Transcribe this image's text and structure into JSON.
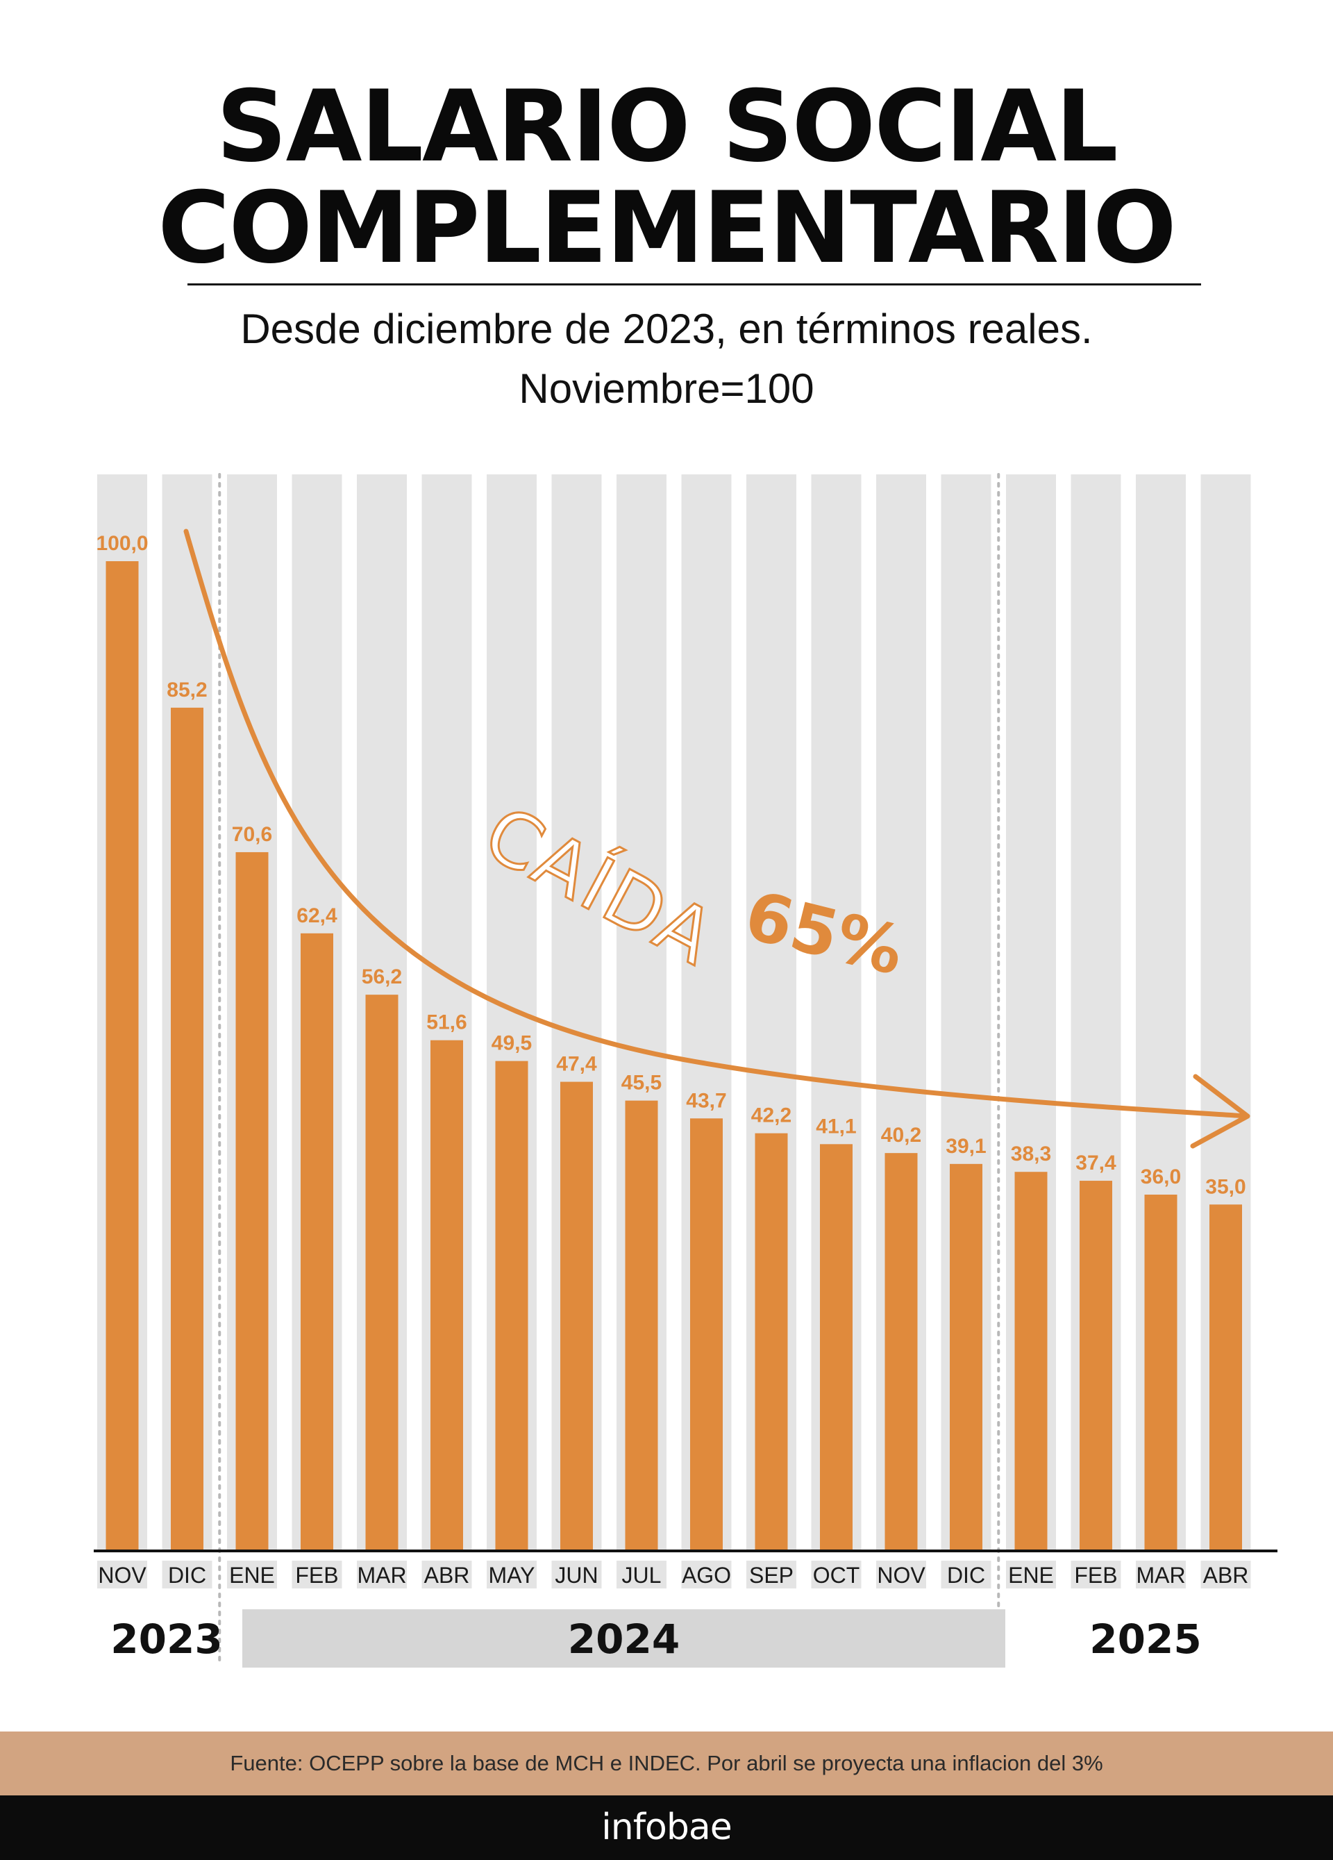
{
  "header": {
    "title_line1": "SALARIO SOCIAL",
    "title_line2": "COMPLEMENTARIO",
    "subtitle_line1": "Desde diciembre de 2023, en términos reales.",
    "subtitle_line2": "Noviembre=100"
  },
  "chart_data": {
    "type": "bar",
    "title": "SALARIO SOCIAL COMPLEMENTARIO",
    "subtitle": "Desde diciembre de 2023, en términos reales. Noviembre=100",
    "categories": [
      "NOV",
      "DIC",
      "ENE",
      "FEB",
      "MAR",
      "ABR",
      "MAY",
      "JUN",
      "JUL",
      "AGO",
      "SEP",
      "OCT",
      "NOV",
      "DIC",
      "ENE",
      "FEB",
      "MAR",
      "ABR"
    ],
    "values": [
      100.0,
      85.2,
      70.6,
      62.4,
      56.2,
      51.6,
      49.5,
      47.4,
      45.5,
      43.7,
      42.2,
      41.1,
      40.2,
      39.1,
      38.3,
      37.4,
      36.0,
      35.0
    ],
    "value_labels": [
      "100,0",
      "85,2",
      "70,6",
      "62,4",
      "56,2",
      "51,6",
      "49,5",
      "47,4",
      "45,5",
      "43,7",
      "42,2",
      "41,1",
      "40,2",
      "39,1",
      "38,3",
      "37,4",
      "36,0",
      "35,0"
    ],
    "years": [
      {
        "label": "2023",
        "months": [
          "NOV",
          "DIC"
        ]
      },
      {
        "label": "2024",
        "months": [
          "ENE",
          "FEB",
          "MAR",
          "ABR",
          "MAY",
          "JUN",
          "JUL",
          "AGO",
          "SEP",
          "OCT",
          "NOV",
          "DIC"
        ]
      },
      {
        "label": "2025",
        "months": [
          "ENE",
          "FEB",
          "MAR",
          "ABR"
        ]
      }
    ],
    "annotation": {
      "text": "CAÍDA",
      "highlight": "65%"
    },
    "ylim": [
      0,
      100
    ],
    "grid": false,
    "bar_color": "#e08a3c",
    "background_stripe_color": "#e4e4e4"
  },
  "footer": {
    "source": "Fuente: OCEPP sobre la base de MCH e INDEC. Por abril se proyecta una inflacion del 3%",
    "brand": "infobae"
  },
  "colors": {
    "accent": "#e08a3c",
    "source_band": "#d2a481",
    "brand_band": "#0c0c0c",
    "year_band": "#d6d6d6"
  }
}
